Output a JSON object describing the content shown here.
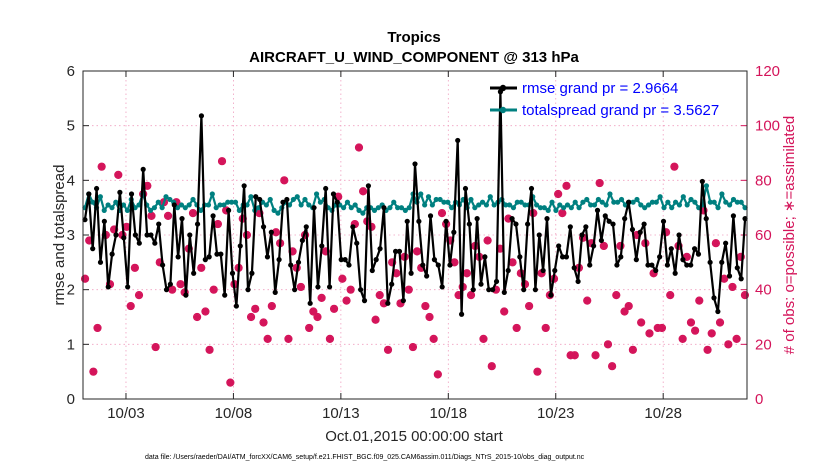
{
  "chart_data": {
    "type": "line",
    "title": "Tropics",
    "subtitle": "AIRCRAFT_U_WIND_COMPONENT @ 313 hPa",
    "xlabel": "Oct.01,2015 00:00:00 start",
    "ylabel": "rmse and totalspread",
    "ylabel_right": "# of obs: o=possible; ∗=assimilated",
    "footnote": "data file: /Users/raeder/DAI/ATM_forcXX/CAM6_setup/f.e21.FHIST_BGC.f09_025.CAM6assim.011/Diags_NTrS_2015-10/obs_diag_output.nc",
    "xlim": [
      1.0,
      31.9
    ],
    "ylim": [
      0,
      6
    ],
    "ylim_right": [
      0,
      120
    ],
    "x_ticks": [
      3,
      8,
      13,
      18,
      23,
      28
    ],
    "x_tick_labels": [
      "10/03",
      "10/08",
      "10/13",
      "10/18",
      "10/23",
      "10/28"
    ],
    "y_ticks": [
      0,
      1,
      2,
      3,
      4,
      5,
      6
    ],
    "y_ticks_right": [
      0,
      20,
      40,
      60,
      80,
      100,
      120
    ],
    "grid": true,
    "legend_position": "top-right",
    "colors": {
      "rmse": "#000000",
      "spread": "#008080",
      "obs": "#d4145a",
      "legend_text": "#0000ff",
      "grid": "#f0a0c0"
    },
    "series": [
      {
        "name": "rmse grand pr = 2.9664",
        "color": "#000000",
        "marker": "circle",
        "values": [
          3.28,
          3.75,
          2.75,
          3.85,
          2.5,
          3.25,
          2.05,
          2.65,
          3.0,
          3.78,
          2.95,
          2.05,
          3.75,
          3.0,
          2.85,
          4.2,
          3.0,
          3.0,
          2.85,
          3.2,
          2.45,
          2.0,
          2.1,
          3.55,
          2.6,
          3.3,
          1.9,
          3.0,
          2.3,
          3.2,
          5.18,
          2.55,
          2.6,
          3.35,
          2.65,
          2.65,
          1.9,
          3.45,
          2.3,
          1.7,
          2.8,
          3.9,
          2.0,
          2.3,
          3.7,
          3.65,
          3.15,
          2.6,
          3.05,
          1.95,
          2.55,
          3.6,
          3.65,
          2.45,
          2.0,
          2.5,
          2.9,
          3.15,
          1.75,
          3.5,
          2.05,
          2.8,
          3.85,
          2.05,
          3.75,
          3.6,
          2.55,
          2.55,
          2.45,
          3.15,
          2.85,
          2.0,
          1.8,
          3.9,
          2.35,
          2.55,
          2.75,
          3.5,
          1.75,
          2.1,
          2.7,
          2.7,
          1.8,
          3.25,
          2.3,
          4.3,
          3.25,
          2.45,
          2.25,
          3.35,
          2.55,
          2.45,
          2.05,
          3.25,
          2.45,
          3.05,
          4.73,
          1.55,
          3.85,
          3.2,
          2.0,
          3.3,
          2.1,
          2.6,
          2.0,
          2.0,
          2.15,
          5.62,
          1.95,
          2.35,
          3.3,
          3.2,
          2.6,
          2.0,
          3.2,
          3.85,
          2.0,
          3.0,
          2.35,
          3.3,
          1.9,
          2.35,
          2.8,
          2.6,
          2.6,
          3.15,
          2.4,
          2.15,
          3.0,
          3.15,
          2.45,
          2.8,
          3.45,
          2.9,
          3.35,
          3.25,
          3.2,
          2.45,
          2.6,
          3.3,
          3.6,
          3.1,
          2.55,
          3.05,
          3.2,
          2.45,
          2.45,
          2.35,
          2.6,
          3.25,
          2.45,
          2.75,
          2.3,
          3.0,
          2.55,
          2.45,
          2.45,
          2.75,
          2.65,
          3.98,
          3.3,
          2.5,
          1.85,
          1.6,
          2.5,
          2.85,
          2.25,
          3.35,
          2.4,
          2.2,
          3.3
        ]
      },
      {
        "name": "totalspread grand pr = 3.5627",
        "color": "#008080",
        "marker": "circle",
        "values": [
          3.5,
          3.75,
          3.6,
          3.5,
          3.7,
          3.45,
          3.55,
          3.5,
          3.6,
          3.45,
          3.55,
          3.45,
          3.65,
          3.5,
          3.55,
          3.75,
          3.55,
          3.45,
          3.5,
          3.6,
          3.5,
          3.7,
          3.65,
          3.6,
          3.5,
          3.55,
          3.5,
          3.55,
          3.65,
          3.55,
          3.45,
          3.55,
          3.55,
          3.75,
          3.5,
          3.55,
          3.55,
          3.6,
          3.6,
          3.6,
          3.45,
          3.55,
          3.55,
          3.7,
          3.45,
          3.5,
          3.6,
          3.55,
          3.65,
          3.45,
          3.4,
          3.5,
          3.6,
          3.55,
          3.65,
          3.7,
          3.55,
          3.65,
          3.55,
          3.5,
          3.75,
          3.6,
          3.65,
          3.5,
          3.45,
          3.55,
          3.55,
          3.5,
          3.6,
          3.5,
          3.55,
          3.45,
          3.4,
          3.5,
          3.5,
          3.45,
          3.5,
          3.55,
          3.45,
          3.5,
          3.6,
          3.5,
          3.5,
          3.45,
          3.5,
          3.75,
          3.6,
          3.75,
          3.55,
          3.7,
          3.55,
          3.65,
          3.65,
          3.6,
          3.6,
          3.5,
          3.6,
          3.55,
          3.65,
          3.5,
          3.65,
          3.5,
          3.55,
          3.6,
          3.55,
          3.7,
          3.55,
          3.6,
          3.65,
          3.55,
          3.55,
          3.5,
          3.6,
          3.6,
          3.55,
          3.55,
          3.7,
          3.55,
          3.5,
          3.5,
          3.45,
          3.6,
          3.45,
          3.55,
          3.5,
          3.55,
          3.5,
          3.6,
          3.5,
          3.6,
          3.65,
          3.55,
          3.55,
          3.65,
          3.6,
          3.55,
          3.75,
          3.6,
          3.6,
          3.65,
          3.55,
          3.6,
          3.6,
          3.65,
          3.55,
          3.5,
          3.55,
          3.6,
          3.6,
          3.7,
          3.5,
          3.6,
          3.5,
          3.6,
          3.55,
          3.7,
          3.55,
          3.65,
          3.6,
          3.5,
          3.55,
          3.9,
          3.6,
          3.6,
          3.5,
          3.75,
          3.6,
          3.55,
          3.65,
          3.6,
          3.6,
          3.5
        ]
      },
      {
        "name": "# of obs (assimilated)",
        "color": "#d4145a",
        "marker": "asterisk",
        "axis": "right",
        "values": [
          44,
          58,
          10,
          26,
          85,
          60,
          42,
          62,
          82,
          60,
          63,
          34,
          48,
          38,
          75,
          78,
          67,
          19,
          50,
          72,
          67,
          40,
          72,
          42,
          39,
          55,
          68,
          30,
          48,
          32,
          18,
          40,
          64,
          87,
          69,
          6,
          42,
          48,
          66,
          60,
          30,
          33,
          68,
          28,
          22,
          34,
          61,
          57,
          80,
          22,
          54,
          48,
          41,
          60,
          26,
          32,
          30,
          37,
          54,
          22,
          33,
          74,
          44,
          36,
          40,
          64,
          92,
          76,
          65,
          63,
          29,
          38,
          35,
          18,
          50,
          46,
          35,
          52,
          40,
          19,
          54,
          48,
          34,
          30,
          22,
          9,
          68,
          64,
          58,
          50,
          38,
          41,
          46,
          38,
          56,
          52,
          22,
          58,
          12,
          40,
          55,
          32,
          66,
          50,
          26,
          46,
          42,
          34,
          68,
          10,
          46,
          26,
          38,
          44,
          75,
          68,
          78,
          16,
          16,
          48,
          59,
          36,
          57,
          16,
          79,
          56,
          20,
          12,
          38,
          56,
          32,
          34,
          18,
          60,
          28,
          57,
          24,
          46,
          26,
          26,
          61,
          38,
          85,
          56,
          22,
          52,
          28,
          25,
          36,
          69,
          18,
          24,
          57,
          28,
          44,
          20,
          41,
          22,
          52,
          38
        ]
      },
      {
        "name": "# of obs (possible)",
        "color": "#d4145a",
        "marker": "circle-open",
        "axis": "right",
        "values": [
          44,
          58,
          10,
          26,
          85,
          60,
          42,
          62,
          82,
          60,
          63,
          34,
          48,
          38,
          75,
          78,
          67,
          19,
          50,
          72,
          67,
          40,
          72,
          42,
          39,
          55,
          68,
          30,
          48,
          32,
          18,
          40,
          64,
          87,
          69,
          6,
          42,
          48,
          66,
          60,
          30,
          33,
          68,
          28,
          22,
          34,
          61,
          57,
          80,
          22,
          54,
          48,
          41,
          60,
          26,
          32,
          30,
          37,
          54,
          22,
          33,
          74,
          44,
          36,
          40,
          64,
          92,
          76,
          65,
          63,
          29,
          38,
          35,
          18,
          50,
          46,
          35,
          52,
          40,
          19,
          54,
          48,
          34,
          30,
          22,
          9,
          68,
          64,
          58,
          50,
          38,
          41,
          46,
          38,
          56,
          52,
          22,
          58,
          12,
          40,
          55,
          32,
          66,
          50,
          26,
          46,
          42,
          34,
          68,
          10,
          46,
          26,
          38,
          44,
          75,
          68,
          78,
          16,
          16,
          48,
          59,
          36,
          57,
          16,
          79,
          56,
          20,
          12,
          38,
          56,
          32,
          34,
          18,
          60,
          28,
          57,
          24,
          46,
          26,
          26,
          61,
          38,
          85,
          56,
          22,
          52,
          28,
          25,
          36,
          69,
          18,
          24,
          57,
          28,
          44,
          20,
          41,
          22,
          52,
          38
        ]
      }
    ]
  }
}
